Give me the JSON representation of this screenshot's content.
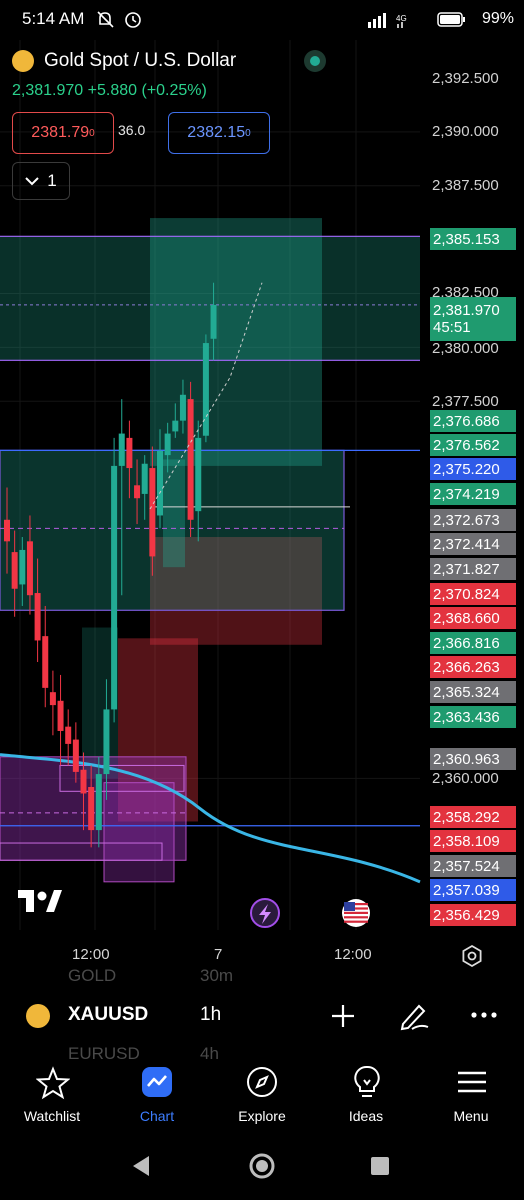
{
  "status": {
    "time": "5:14 AM",
    "network": "4G",
    "battery": "99%"
  },
  "header": {
    "title": "Gold Spot / U.S. Dollar",
    "price": "2,381.970",
    "change": "+5.880",
    "change_pct": "(+0.25%)",
    "sell": "2381.79",
    "sell_sup": "0",
    "spread": "36.0",
    "buy": "2382.15",
    "buy_sup": "0",
    "layers_count": "1"
  },
  "price_scale": [
    "2,392.500",
    "2,390.000",
    "2,387.500",
    "2,382.500",
    "2,380.000",
    "2,377.500",
    "2,360.000"
  ],
  "price_labels": [
    {
      "text": "2,385.153",
      "color": "#1f9b6f"
    },
    {
      "text": "2,381.970",
      "color": "#1f9b6f",
      "sub": "45:51"
    },
    {
      "text": "2,376.686",
      "color": "#1f9b6f"
    },
    {
      "text": "2,376.562",
      "color": "#1f9b6f"
    },
    {
      "text": "2,375.220",
      "color": "#2f5be8"
    },
    {
      "text": "2,374.219",
      "color": "#1f9b6f"
    },
    {
      "text": "2,372.673",
      "color": "#6f6f73"
    },
    {
      "text": "2,372.414",
      "color": "#6f6f73"
    },
    {
      "text": "2,371.827",
      "color": "#6f6f73"
    },
    {
      "text": "2,370.824",
      "color": "#e3333f"
    },
    {
      "text": "2,368.660",
      "color": "#e3333f"
    },
    {
      "text": "2,366.816",
      "color": "#1f9b6f"
    },
    {
      "text": "2,366.263",
      "color": "#e3333f"
    },
    {
      "text": "2,365.324",
      "color": "#6f6f73"
    },
    {
      "text": "2,363.436",
      "color": "#1f9b6f"
    },
    {
      "text": "2,360.963",
      "color": "#6f6f73"
    },
    {
      "text": "2,358.292",
      "color": "#e3333f"
    },
    {
      "text": "2,358.109",
      "color": "#e3333f"
    },
    {
      "text": "2,357.524",
      "color": "#6f6f73"
    },
    {
      "text": "2,357.039",
      "color": "#2f5be8"
    },
    {
      "text": "2,356.429",
      "color": "#e3333f"
    }
  ],
  "time_axis": [
    "12:00",
    "7",
    "12:00"
  ],
  "toolbar": {
    "symbol": "XAUUSD",
    "interval": "1h",
    "ghost_top": "GOLD",
    "ghost_top_int": "30m",
    "ghost_bottom": "EURUSD",
    "ghost_bottom_int": "4h"
  },
  "nav": [
    {
      "label": "Watchlist",
      "icon": "star-icon"
    },
    {
      "label": "Chart",
      "icon": "chart-icon",
      "active": true
    },
    {
      "label": "Explore",
      "icon": "compass-icon"
    },
    {
      "label": "Ideas",
      "icon": "lightbulb-icon"
    },
    {
      "label": "Menu",
      "icon": "hamburger-icon"
    }
  ],
  "colors": {
    "up": "#22ab94",
    "down": "#f23645",
    "accent": "#3d7dff"
  },
  "chart_data": {
    "type": "candlestick",
    "interval": "1h",
    "last_price": 2381.97,
    "candles": [
      {
        "o": 2372.0,
        "h": 2373.5,
        "c": 2371.0,
        "l": 2369.5
      },
      {
        "o": 2370.5,
        "h": 2371.5,
        "c": 2368.8,
        "l": 2367.5
      },
      {
        "o": 2369.0,
        "h": 2371.2,
        "c": 2370.6,
        "l": 2368.0
      },
      {
        "o": 2371.0,
        "h": 2372.2,
        "c": 2368.5,
        "l": 2367.6
      },
      {
        "o": 2368.6,
        "h": 2370.2,
        "c": 2366.4,
        "l": 2365.4
      },
      {
        "o": 2366.6,
        "h": 2368.0,
        "c": 2364.2,
        "l": 2363.3
      },
      {
        "o": 2364.0,
        "h": 2365.0,
        "c": 2363.4,
        "l": 2362.0
      },
      {
        "o": 2363.6,
        "h": 2364.8,
        "c": 2362.2,
        "l": 2360.6
      },
      {
        "o": 2362.4,
        "h": 2363.2,
        "c": 2361.6,
        "l": 2360.6
      },
      {
        "o": 2361.8,
        "h": 2362.6,
        "c": 2360.3,
        "l": 2359.8
      },
      {
        "o": 2360.4,
        "h": 2361.2,
        "c": 2359.3,
        "l": 2357.6
      },
      {
        "o": 2359.6,
        "h": 2360.6,
        "c": 2357.6,
        "l": 2356.8
      },
      {
        "o": 2357.6,
        "h": 2361.0,
        "c": 2360.2,
        "l": 2356.8
      },
      {
        "o": 2360.2,
        "h": 2364.6,
        "c": 2363.2,
        "l": 2359.0
      },
      {
        "o": 2363.2,
        "h": 2375.8,
        "c": 2374.5,
        "l": 2362.6
      },
      {
        "o": 2374.5,
        "h": 2377.6,
        "c": 2376.0,
        "l": 2368.5
      },
      {
        "o": 2375.8,
        "h": 2376.6,
        "c": 2374.4,
        "l": 2373.0
      },
      {
        "o": 2373.6,
        "h": 2374.8,
        "c": 2373.0,
        "l": 2371.8
      },
      {
        "o": 2373.2,
        "h": 2375.0,
        "c": 2374.6,
        "l": 2372.0
      },
      {
        "o": 2374.4,
        "h": 2375.4,
        "c": 2370.3,
        "l": 2369.4
      },
      {
        "o": 2372.2,
        "h": 2376.2,
        "c": 2375.2,
        "l": 2371.6
      },
      {
        "o": 2375.0,
        "h": 2376.5,
        "c": 2376.0,
        "l": 2374.2
      },
      {
        "o": 2376.1,
        "h": 2377.4,
        "c": 2376.6,
        "l": 2375.8
      },
      {
        "o": 2376.6,
        "h": 2378.5,
        "c": 2377.8,
        "l": 2376.0
      },
      {
        "o": 2377.6,
        "h": 2378.4,
        "c": 2372.0,
        "l": 2371.2
      },
      {
        "o": 2372.4,
        "h": 2376.6,
        "c": 2375.8,
        "l": 2371.0
      },
      {
        "o": 2375.9,
        "h": 2380.6,
        "c": 2380.2,
        "l": 2375.6
      },
      {
        "o": 2380.4,
        "h": 2383.0,
        "c": 2381.97,
        "l": 2379.4
      }
    ],
    "horizontal_levels": [
      2385.153,
      2381.97,
      2375.22,
      2357.039
    ]
  }
}
